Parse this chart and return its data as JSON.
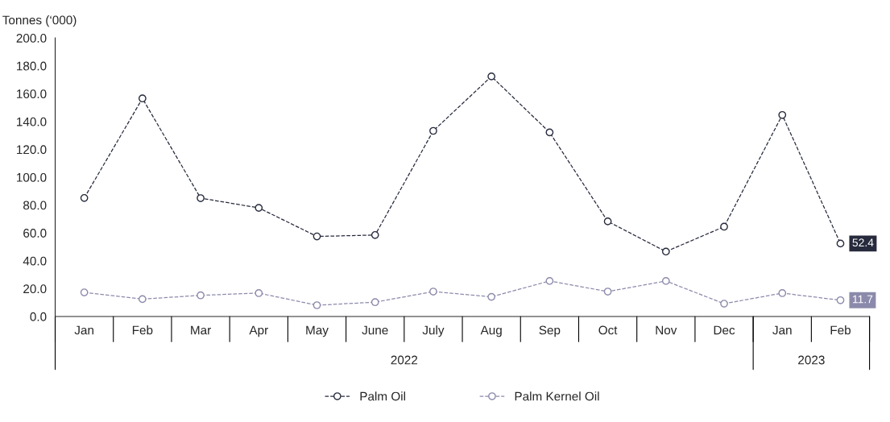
{
  "chart_data": {
    "type": "line",
    "ylabel": "Tonnes (‘000)",
    "categories": [
      "Jan",
      "Feb",
      "Mar",
      "Apr",
      "May",
      "June",
      "July",
      "Aug",
      "Sep",
      "Oct",
      "Nov",
      "Dec",
      "Jan",
      "Feb"
    ],
    "annotations": [
      "2022",
      "2023"
    ],
    "series": [
      {
        "name": "Palm Oil",
        "color": "#262a3c",
        "values": [
          85.1,
          156.6,
          85.0,
          78.0,
          57.5,
          58.5,
          133.3,
          172.4,
          132.2,
          68.3,
          46.6,
          64.5,
          144.7,
          52.4
        ],
        "value_labels": [
          null,
          null,
          null,
          null,
          null,
          null,
          null,
          null,
          null,
          null,
          null,
          null,
          null,
          "52.4"
        ]
      },
      {
        "name": "Palm Kernel Oil",
        "color": "#8c8aab",
        "values": [
          17.3,
          12.5,
          15.2,
          16.8,
          8.1,
          10.3,
          17.9,
          14.1,
          25.5,
          17.9,
          25.5,
          9.2,
          16.8,
          11.7
        ],
        "value_labels": [
          null,
          null,
          null,
          null,
          null,
          null,
          null,
          null,
          null,
          null,
          null,
          null,
          null,
          "11.7"
        ]
      }
    ],
    "ylim": [
      0,
      200
    ],
    "yticks": [
      {
        "value": 0,
        "label": "0.0"
      },
      {
        "value": 20,
        "label": "20.0"
      },
      {
        "value": 40,
        "label": "40.0"
      },
      {
        "value": 60,
        "label": "60.0"
      },
      {
        "value": 80,
        "label": "80.0"
      },
      {
        "value": 100,
        "label": "100.0"
      },
      {
        "value": 120,
        "label": "120.0"
      },
      {
        "value": 140,
        "label": "140.0"
      },
      {
        "value": 160,
        "label": "160.0"
      },
      {
        "value": 180,
        "label": "180.0"
      },
      {
        "value": 200,
        "label": "200.0"
      }
    ],
    "grid": false,
    "legend": "bottom",
    "marker": "circle",
    "line_style": "dashed"
  }
}
